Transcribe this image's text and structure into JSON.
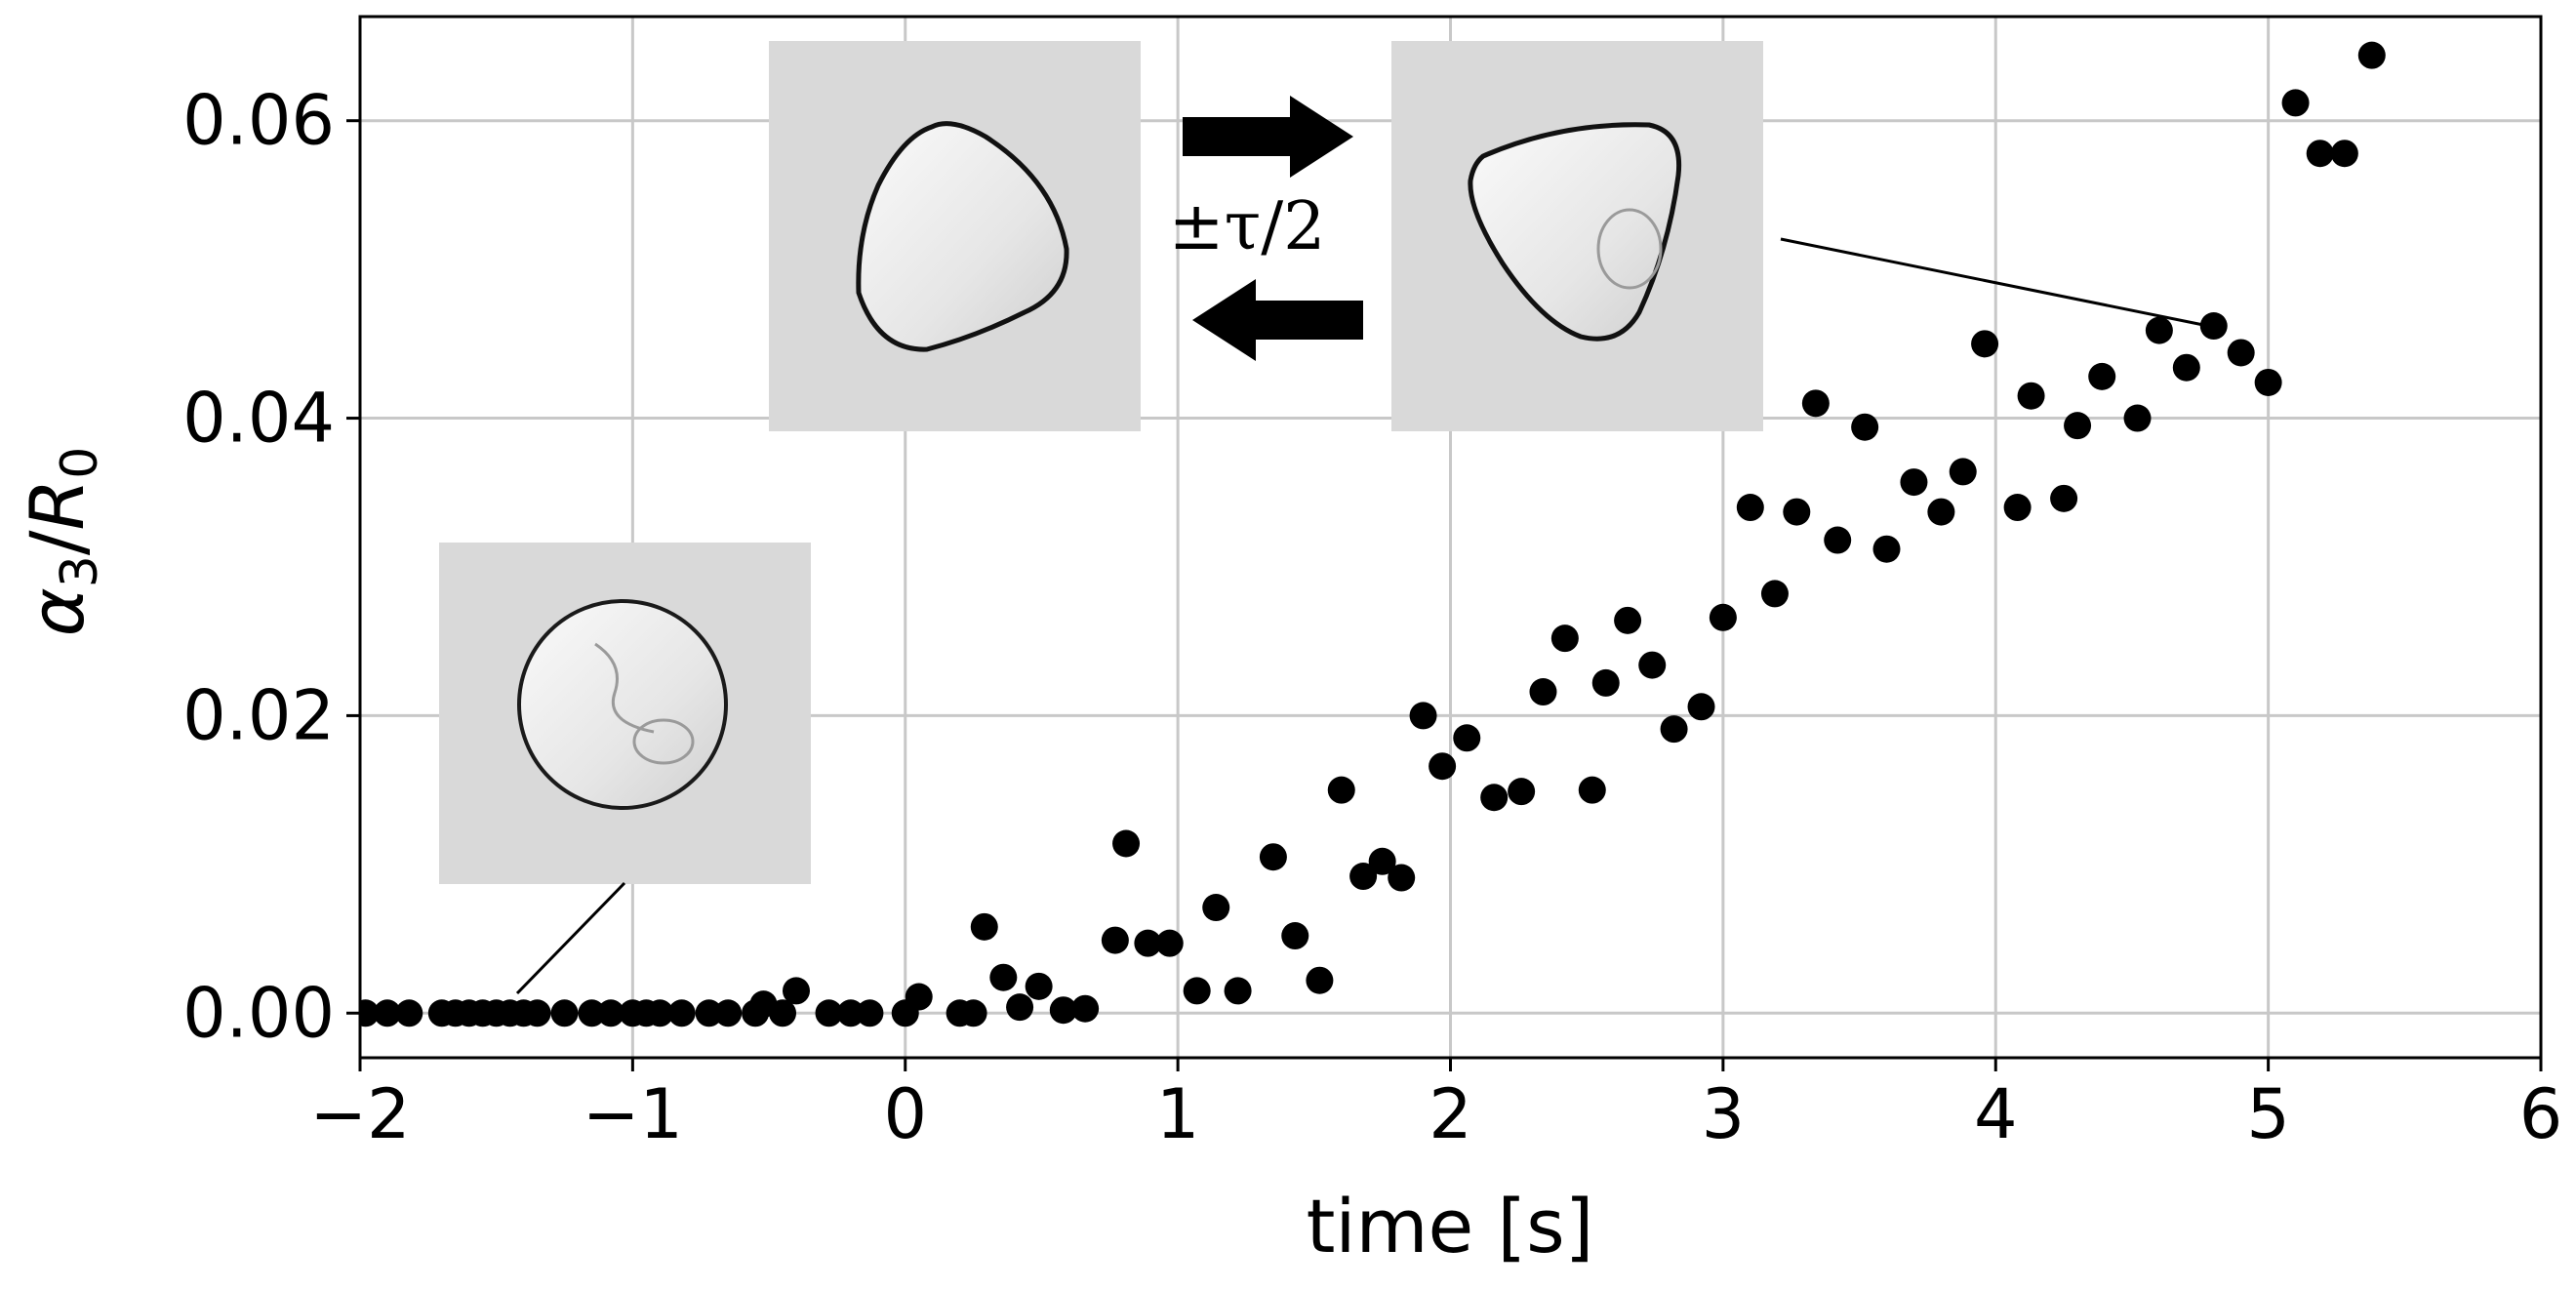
{
  "chart_data": {
    "type": "scatter",
    "xlabel": "time [s]",
    "ylabel_main": "α",
    "ylabel_sub": "3",
    "ylabel_slash": "/",
    "ylabel_main2": "R",
    "ylabel_sub2": "0",
    "xlim": [
      -2,
      6
    ],
    "ylim": [
      -0.003,
      0.067
    ],
    "x_ticks": [
      -2,
      -1,
      0,
      1,
      2,
      3,
      4,
      5,
      6
    ],
    "x_tick_labels": [
      "−2",
      "−1",
      "0",
      "1",
      "2",
      "3",
      "4",
      "5",
      "6"
    ],
    "y_ticks": [
      0.0,
      0.02,
      0.04,
      0.06
    ],
    "y_tick_labels": [
      "0.00",
      "0.02",
      "0.04",
      "0.06"
    ],
    "grid": true,
    "marker_color": "#000000",
    "grid_color": "#c8c8c8",
    "annotation_text": "±τ/2",
    "points": [
      [
        -1.98,
        0.0
      ],
      [
        -1.9,
        0.0
      ],
      [
        -1.82,
        0.0
      ],
      [
        -1.7,
        0.0
      ],
      [
        -1.65,
        0.0
      ],
      [
        -1.6,
        0.0
      ],
      [
        -1.55,
        0.0
      ],
      [
        -1.5,
        0.0
      ],
      [
        -1.45,
        0.0
      ],
      [
        -1.4,
        0.0
      ],
      [
        -1.35,
        0.0
      ],
      [
        -1.25,
        0.0
      ],
      [
        -1.15,
        0.0
      ],
      [
        -1.08,
        0.0
      ],
      [
        -1.0,
        0.0
      ],
      [
        -0.95,
        0.0
      ],
      [
        -0.9,
        0.0
      ],
      [
        -0.82,
        0.0
      ],
      [
        -0.72,
        0.0
      ],
      [
        -0.65,
        0.0
      ],
      [
        -0.55,
        0.0
      ],
      [
        -0.52,
        0.0006
      ],
      [
        -0.45,
        0.0
      ],
      [
        -0.4,
        0.0015
      ],
      [
        -0.28,
        0.0
      ],
      [
        -0.2,
        0.0
      ],
      [
        -0.13,
        0.0
      ],
      [
        0.0,
        0.0
      ],
      [
        0.05,
        0.0011
      ],
      [
        0.2,
        0.0
      ],
      [
        0.25,
        0.0
      ],
      [
        0.29,
        0.0058
      ],
      [
        0.36,
        0.0024
      ],
      [
        0.42,
        0.0004
      ],
      [
        0.49,
        0.0018
      ],
      [
        0.58,
        0.0002
      ],
      [
        0.66,
        0.0003
      ],
      [
        0.77,
        0.0049
      ],
      [
        0.81,
        0.0114
      ],
      [
        0.89,
        0.0047
      ],
      [
        0.97,
        0.0047
      ],
      [
        1.07,
        0.0015
      ],
      [
        1.14,
        0.0071
      ],
      [
        1.22,
        0.0015
      ],
      [
        1.35,
        0.0105
      ],
      [
        1.43,
        0.0052
      ],
      [
        1.52,
        0.0022
      ],
      [
        1.6,
        0.015
      ],
      [
        1.68,
        0.0092
      ],
      [
        1.75,
        0.0102
      ],
      [
        1.82,
        0.0091
      ],
      [
        1.9,
        0.02
      ],
      [
        1.97,
        0.0166
      ],
      [
        2.06,
        0.0185
      ],
      [
        2.16,
        0.0145
      ],
      [
        2.26,
        0.0149
      ],
      [
        2.34,
        0.0216
      ],
      [
        2.42,
        0.0252
      ],
      [
        2.52,
        0.015
      ],
      [
        2.57,
        0.0222
      ],
      [
        2.65,
        0.0264
      ],
      [
        2.74,
        0.0234
      ],
      [
        2.82,
        0.0191
      ],
      [
        2.92,
        0.0206
      ],
      [
        3.0,
        0.0266
      ],
      [
        3.1,
        0.034
      ],
      [
        3.19,
        0.0282
      ],
      [
        3.27,
        0.0337
      ],
      [
        3.34,
        0.041
      ],
      [
        3.42,
        0.0318
      ],
      [
        3.52,
        0.0394
      ],
      [
        3.6,
        0.0312
      ],
      [
        3.7,
        0.0357
      ],
      [
        3.8,
        0.0337
      ],
      [
        3.88,
        0.0364
      ],
      [
        3.96,
        0.045
      ],
      [
        4.08,
        0.034
      ],
      [
        4.13,
        0.0415
      ],
      [
        4.25,
        0.0346
      ],
      [
        4.3,
        0.0395
      ],
      [
        4.39,
        0.0428
      ],
      [
        4.52,
        0.04
      ],
      [
        4.6,
        0.0459
      ],
      [
        4.7,
        0.0434
      ],
      [
        4.8,
        0.0462
      ],
      [
        4.9,
        0.0444
      ],
      [
        5.0,
        0.0424
      ],
      [
        5.1,
        0.0612
      ],
      [
        5.19,
        0.0578
      ],
      [
        5.28,
        0.0578
      ],
      [
        5.38,
        0.0644
      ]
    ]
  }
}
